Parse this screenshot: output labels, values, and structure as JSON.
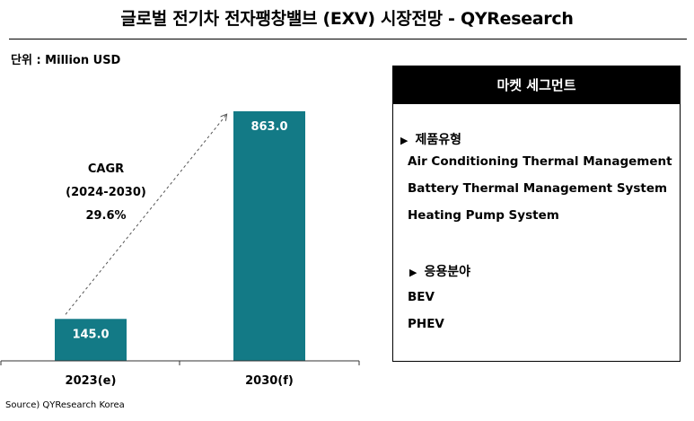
{
  "title": "글로벌  전기차 전자팽창밸브 (EXV) 시장전망 - QYResearch",
  "unit_label": "단위 : Million USD",
  "cagr": {
    "line1": "CAGR",
    "line2": "(2024-2030)",
    "line3": "29.6%"
  },
  "chart_data": {
    "type": "bar",
    "categories": [
      "2023(e)",
      "2030(f)"
    ],
    "values": [
      145.0,
      863.0
    ],
    "value_labels": [
      "145.0",
      "863.0"
    ],
    "ylim": [
      0,
      900
    ],
    "grid": false,
    "trend_arrow": true,
    "colors": {
      "bar": "#137a86"
    }
  },
  "segments": {
    "header": "마켓 세그먼트",
    "groups": [
      {
        "title": "제품유형",
        "items": [
          "Air Conditioning Thermal Management",
          "Battery Thermal Management System",
          "Heating Pump System"
        ]
      },
      {
        "title": "응용분야",
        "items": [
          "BEV",
          "PHEV"
        ]
      }
    ]
  },
  "source": "Source) QYResearch Korea"
}
